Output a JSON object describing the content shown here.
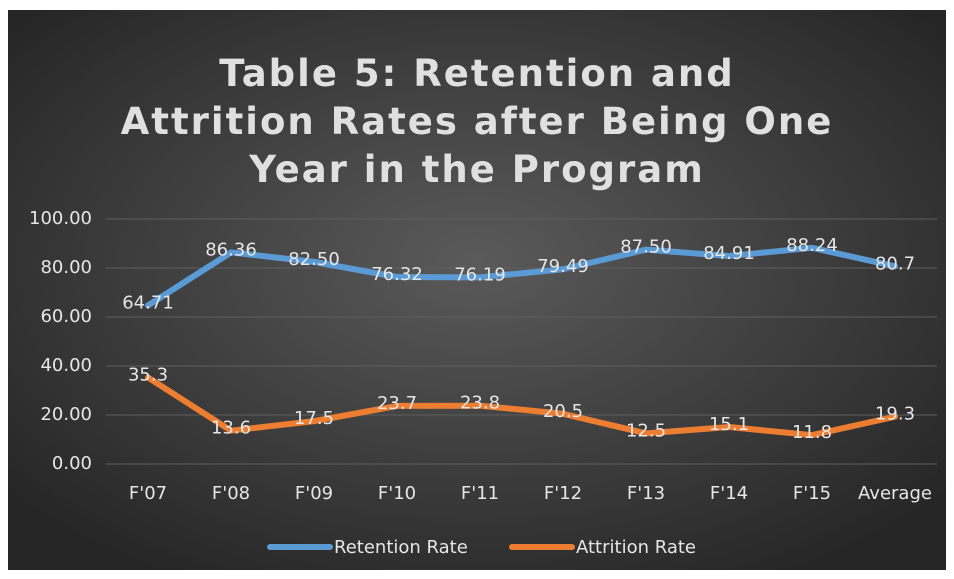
{
  "chart_data": {
    "type": "line",
    "title": "Table 5: Retention and Attrition Rates after Being One Year in the Program",
    "categories": [
      "F'07",
      "F'08",
      "F'09",
      "F'10",
      "F'11",
      "F'12",
      "F'13",
      "F'14",
      "F'15",
      "Average"
    ],
    "series": [
      {
        "name": "Retention Rate",
        "color": "#5b9bd5",
        "values": [
          64.71,
          86.36,
          82.5,
          76.32,
          76.19,
          79.49,
          87.5,
          84.91,
          88.24,
          80.7
        ],
        "value_labels": [
          "64.71",
          "86.36",
          "82.50",
          "76.32",
          "76.19",
          "79.49",
          "87.50",
          "84.91",
          "88.24",
          "80.7"
        ]
      },
      {
        "name": "Attrition Rate",
        "color": "#ed7d31",
        "values": [
          35.3,
          13.6,
          17.5,
          23.7,
          23.8,
          20.5,
          12.5,
          15.1,
          11.8,
          19.3
        ]
      }
    ],
    "ylim": [
      0,
      100
    ],
    "yticks": [
      {
        "value": 0,
        "label": "0.00"
      },
      {
        "value": 20,
        "label": "20.00"
      },
      {
        "value": 40,
        "label": "40.00"
      },
      {
        "value": 60,
        "label": "60.00"
      },
      {
        "value": 80,
        "label": "80.00"
      },
      {
        "value": 100,
        "label": "100.00"
      }
    ],
    "grid": true,
    "legend": "bottom"
  }
}
